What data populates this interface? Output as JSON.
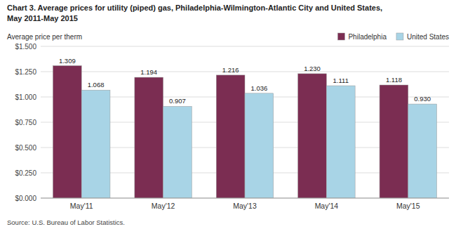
{
  "chart_data": {
    "type": "bar",
    "title": "Chart 3. Average prices for utility (piped) gas, Philadelphia-Wilmington-Atlantic City and United States,",
    "subtitle": "May 2011-May 2015",
    "ylabel": "Average price per therm",
    "source": "Source: U.S. Bureau of Labor Statistics.",
    "categories": [
      "May'11",
      "May'12",
      "May'13",
      "May'14",
      "May'15"
    ],
    "series": [
      {
        "name": "Philadelphia",
        "color": "#7B2D52",
        "values": [
          1.309,
          1.194,
          1.216,
          1.23,
          1.118
        ],
        "value_labels": [
          "1.309",
          "1.194",
          "1.216",
          "1.230",
          "1.118"
        ]
      },
      {
        "name": "United States",
        "color": "#A8D4E6",
        "values": [
          1.068,
          0.907,
          1.036,
          1.111,
          0.93
        ],
        "value_labels": [
          "1.068",
          "0.907",
          "1.036",
          "1.111",
          "0.930"
        ]
      }
    ],
    "ylim": [
      0.0,
      1.5
    ],
    "yticks": [
      {
        "value": 0.0,
        "label": "$0.000"
      },
      {
        "value": 0.25,
        "label": "$0.250"
      },
      {
        "value": 0.5,
        "label": "$0.500"
      },
      {
        "value": 0.75,
        "label": "$0.750"
      },
      {
        "value": 1.0,
        "label": "$1.000"
      },
      {
        "value": 1.25,
        "label": "$1.250"
      },
      {
        "value": 1.5,
        "label": "$1.500"
      }
    ],
    "grid": true,
    "legend": "upper right",
    "data_labels": true
  }
}
